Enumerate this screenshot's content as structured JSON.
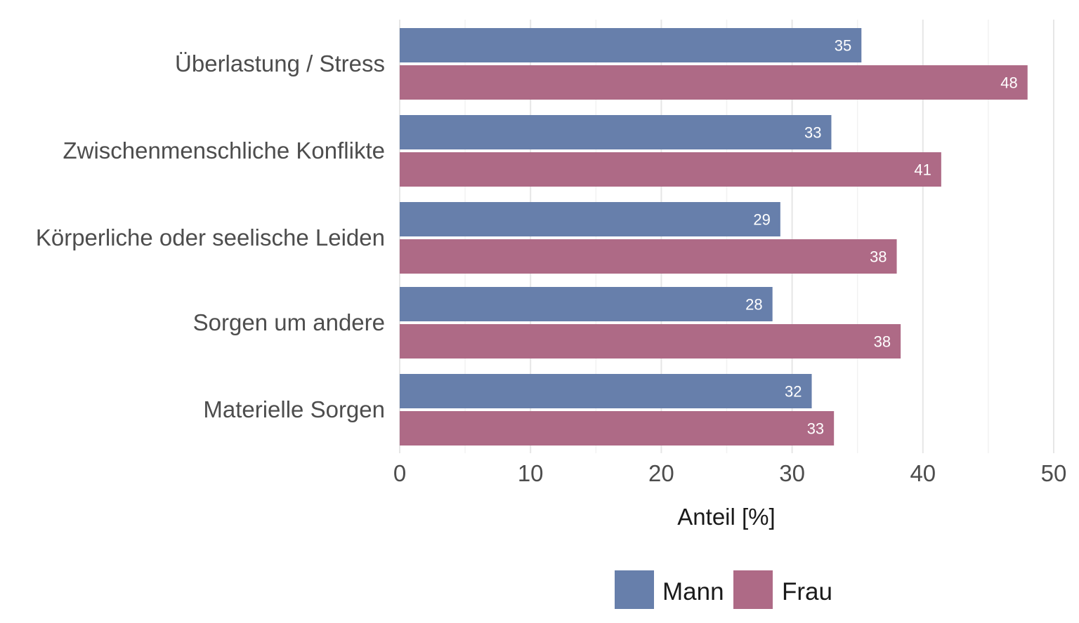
{
  "chart_data": {
    "type": "bar",
    "orientation": "horizontal",
    "categories": [
      "Überlastung / Stress",
      "Zwischenmenschliche Konflikte",
      "Körperliche oder seelische Leiden",
      "Sorgen um andere",
      "Materielle Sorgen"
    ],
    "series": [
      {
        "name": "Mann",
        "color": "#677fab",
        "values": [
          35.3,
          33.0,
          29.1,
          28.5,
          31.5
        ],
        "labels": [
          "35",
          "33",
          "29",
          "28",
          "32"
        ]
      },
      {
        "name": "Frau",
        "color": "#ae6a86",
        "values": [
          48.0,
          41.4,
          38.0,
          38.3,
          33.2
        ],
        "labels": [
          "48",
          "41",
          "38",
          "38",
          "33"
        ]
      }
    ],
    "xlabel": "Anteil [%]",
    "ylabel": "",
    "xlim": [
      0,
      50
    ],
    "ticks": [
      0,
      10,
      20,
      30,
      40,
      50
    ],
    "tick_labels": [
      "0",
      "10",
      "20",
      "30",
      "40",
      "50"
    ],
    "grid": true,
    "legend_position": "bottom"
  }
}
